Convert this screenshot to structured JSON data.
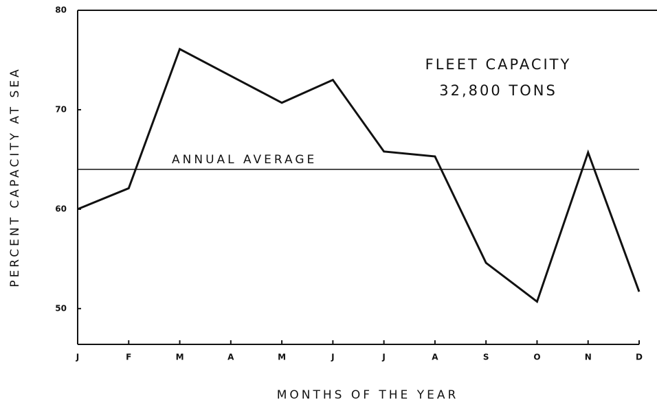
{
  "chart_data": {
    "type": "line",
    "ylabel": "PERCENT CAPACITY AT SEA",
    "xlabel": "MONTHS OF THE YEAR",
    "annotations": [
      "FLEET CAPACITY",
      "32,800 TONS"
    ],
    "average": {
      "label": "ANNUAL AVERAGE",
      "value": 64.0
    },
    "categories": [
      "J",
      "F",
      "M",
      "A",
      "M",
      "J",
      "J",
      "A",
      "S",
      "O",
      "N",
      "D"
    ],
    "values": [
      60.0,
      62.1,
      76.1,
      73.4,
      70.7,
      73.0,
      65.8,
      65.3,
      54.6,
      50.7,
      65.7,
      51.7
    ],
    "color": "#111111",
    "ylim": [
      46.4,
      80
    ],
    "yticks": [
      50,
      60,
      70,
      80
    ],
    "grid": false
  }
}
